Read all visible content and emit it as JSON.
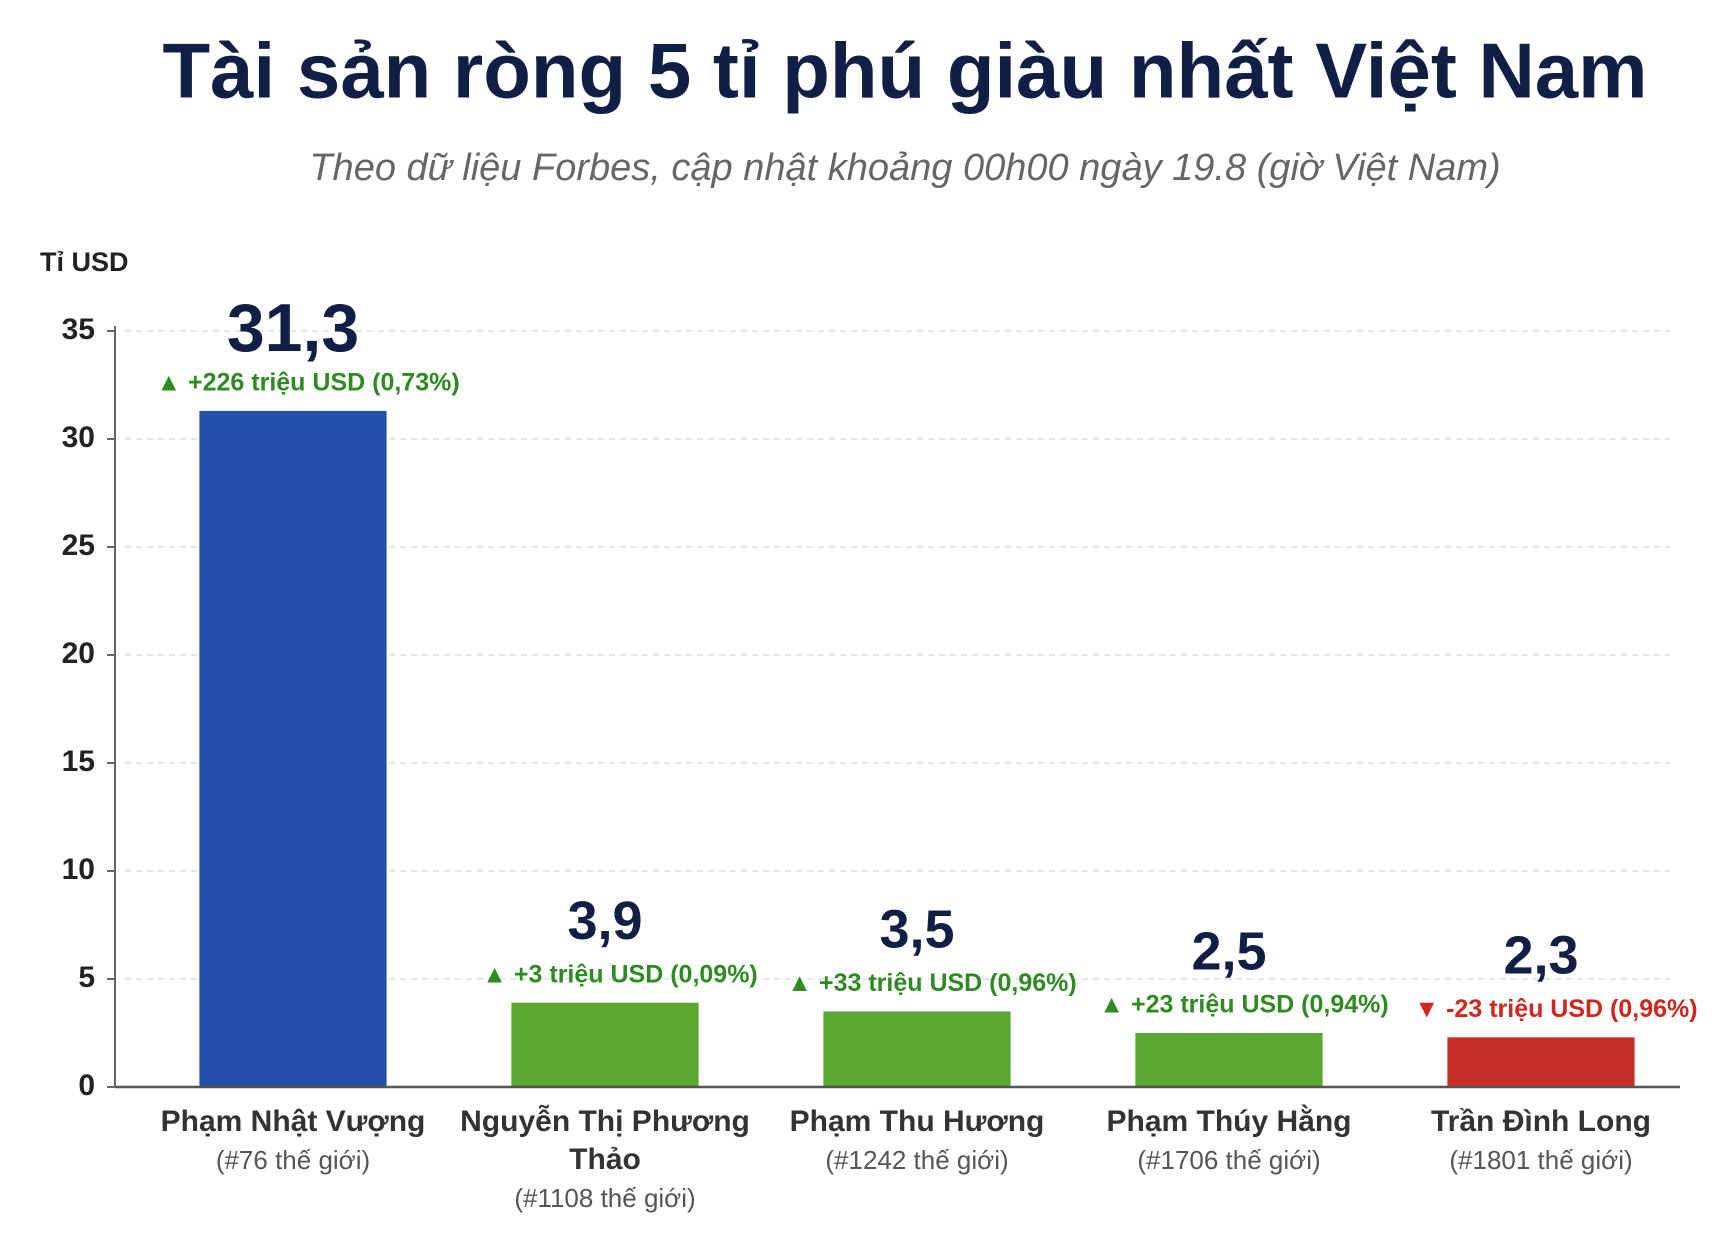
{
  "chart_data": {
    "type": "bar",
    "title": "Tài sản ròng 5 tỉ phú giàu nhất Việt Nam",
    "subtitle": "Theo dữ liệu Forbes, cập nhật khoảng 00h00 ngày 19.8 (giờ Việt Nam)",
    "y_label": "Tỉ USD",
    "categories": [
      "Phạm Nhật Vượng",
      "Nguyễn Thị Phương Thảo",
      "Phạm Thu Hương",
      "Phạm Thúy Hằng",
      "Trần Đình Long"
    ],
    "category_notes": [
      "(#76 thế giới)",
      "(#1108 thế giới)",
      "(#1242 thế giới)",
      "(#1706 thế giới)",
      "(#1801 thế giới)"
    ],
    "values": [
      31.3,
      3.9,
      3.5,
      2.5,
      2.3
    ],
    "value_labels": [
      "31,3",
      "3,9",
      "3,5",
      "2,5",
      "2,3"
    ],
    "colors": [
      "#2350a8",
      "#5aa832",
      "#5aa832",
      "#5aa832",
      "#c8302a"
    ],
    "changes": [
      "▲ +226 triệu USD (0,73%)",
      "▲ +3 triệu USD (0,09%)",
      "▲ +33 triệu USD (0,96%)",
      "▲ +23 triệu USD (0,94%)",
      "▼ -23 triệu USD (0,96%)"
    ],
    "change_colors": [
      "#2e8b22",
      "#2e8b22",
      "#2e8b22",
      "#2e8b22",
      "#d0261d"
    ],
    "ylim": [
      0,
      35
    ],
    "yticks": [
      0,
      5,
      10,
      15,
      20,
      25,
      30,
      35
    ],
    "grid": true
  }
}
